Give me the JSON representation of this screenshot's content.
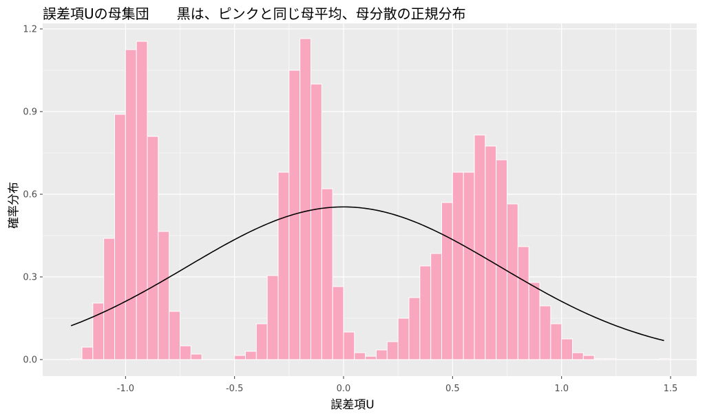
{
  "chart_data": {
    "type": "bar",
    "title": "誤差項Uの母集団　　黒は、ピンクと同じ母平均、母分散の正規分布",
    "xlabel": "誤差項U",
    "ylabel": "確率分布",
    "xlim": [
      -1.38,
      1.62
    ],
    "ylim": [
      -0.06,
      1.22
    ],
    "x_ticks": [
      -1.0,
      -0.5,
      0.0,
      0.5,
      1.0,
      1.5
    ],
    "x_tick_labels": [
      "-1.0",
      "-0.5",
      "0.0",
      "0.5",
      "1.0",
      "1.5"
    ],
    "y_ticks": [
      0.0,
      0.3,
      0.6,
      0.9,
      1.2
    ],
    "y_tick_labels": [
      "0.0",
      "0.3",
      "0.6",
      "0.9",
      "1.2"
    ],
    "grid": true,
    "colors": {
      "bars": "#f9a7be",
      "bar_outline": "#ffffff",
      "curve": "#000000",
      "panel": "#ebebeb",
      "grid": "#ffffff"
    },
    "bin_width": 0.05,
    "histogram": {
      "bin_centers": [
        -1.225,
        -1.175,
        -1.125,
        -1.075,
        -1.025,
        -0.975,
        -0.925,
        -0.875,
        -0.825,
        -0.775,
        -0.725,
        -0.675,
        -0.625,
        -0.575,
        -0.525,
        -0.475,
        -0.425,
        -0.375,
        -0.325,
        -0.275,
        -0.225,
        -0.175,
        -0.125,
        -0.075,
        -0.025,
        0.025,
        0.075,
        0.125,
        0.175,
        0.225,
        0.275,
        0.325,
        0.375,
        0.425,
        0.475,
        0.525,
        0.575,
        0.625,
        0.675,
        0.725,
        0.775,
        0.825,
        0.875,
        0.925,
        0.975,
        1.025,
        1.075,
        1.125,
        1.175,
        1.225,
        1.275,
        1.325,
        1.375,
        1.425,
        1.475
      ],
      "values": [
        0.003,
        0.045,
        0.205,
        0.44,
        0.89,
        1.125,
        1.155,
        0.81,
        0.465,
        0.175,
        0.05,
        0.02,
        0,
        0,
        0,
        0.015,
        0.03,
        0.13,
        0.305,
        0.68,
        1.05,
        1.165,
        1.0,
        0.62,
        0.265,
        0.1,
        0.025,
        0.012,
        0.035,
        0.065,
        0.15,
        0.225,
        0.34,
        0.385,
        0.57,
        0.68,
        0.68,
        0.815,
        0.775,
        0.725,
        0.565,
        0.41,
        0.28,
        0.195,
        0.13,
        0.075,
        0.025,
        0.015,
        0.003,
        0.003,
        0,
        0,
        0,
        0,
        0.003
      ]
    },
    "normal_curve": {
      "mean": 0.0,
      "sd": 0.72,
      "x_range": [
        -1.25,
        1.47
      ]
    }
  }
}
